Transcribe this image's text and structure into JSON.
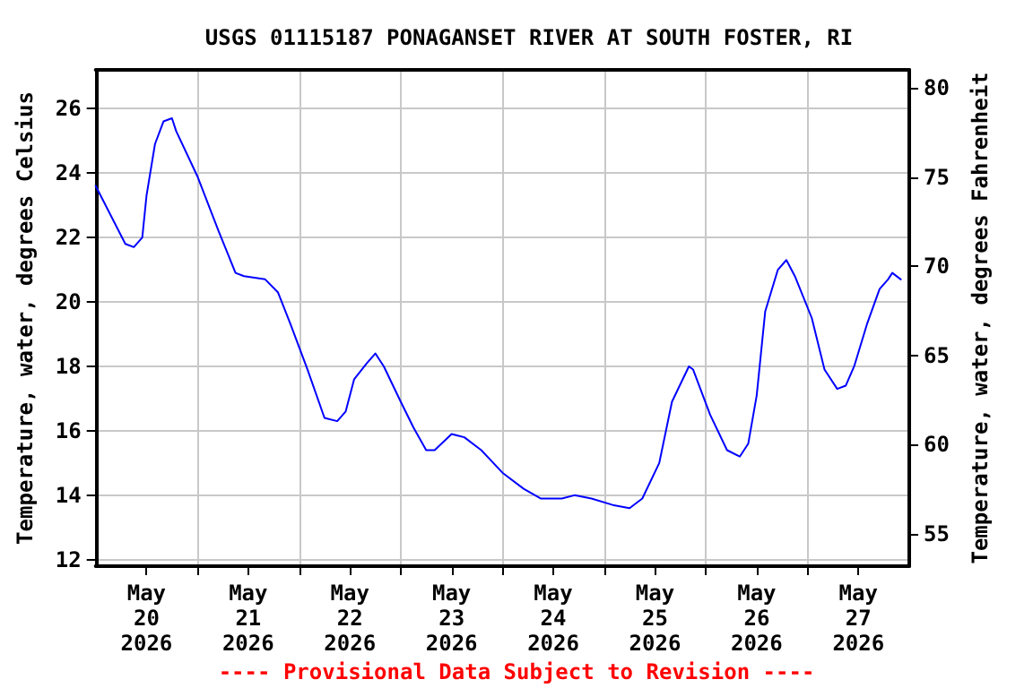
{
  "chart_data": {
    "type": "line",
    "title": "USGS 01115187 PONAGANSET RIVER AT SOUTH FOSTER, RI",
    "ylabel": "Temperature, water, degrees Celsius",
    "y2label": "Temperature, water, degrees Fahrenheit",
    "annotations": [
      "---- Provisional Data Subject to Revision ----"
    ],
    "series": [
      {
        "color": "#0000ff",
        "x": [
          "2026-05-20T00:00",
          "2026-05-20T07:00",
          "2026-05-20T09:00",
          "2026-05-20T11:00",
          "2026-05-20T12:00",
          "2026-05-20T14:00",
          "2026-05-20T16:00",
          "2026-05-20T18:00",
          "2026-05-20T19:00",
          "2026-05-21T00:00",
          "2026-05-21T05:00",
          "2026-05-21T09:00",
          "2026-05-21T11:00",
          "2026-05-21T16:00",
          "2026-05-21T19:00",
          "2026-05-21T22:00",
          "2026-05-22T02:00",
          "2026-05-22T06:00",
          "2026-05-22T09:00",
          "2026-05-22T11:00",
          "2026-05-22T13:00",
          "2026-05-22T16:00",
          "2026-05-22T18:00",
          "2026-05-22T20:00",
          "2026-05-23T00:00",
          "2026-05-23T03:00",
          "2026-05-23T06:00",
          "2026-05-23T08:00",
          "2026-05-23T12:00",
          "2026-05-23T15:00",
          "2026-05-23T19:00",
          "2026-05-24T00:00",
          "2026-05-24T05:00",
          "2026-05-24T09:00",
          "2026-05-24T14:00",
          "2026-05-24T17:00",
          "2026-05-24T21:00",
          "2026-05-25T02:00",
          "2026-05-25T06:00",
          "2026-05-25T09:00",
          "2026-05-25T13:00",
          "2026-05-25T16:00",
          "2026-05-25T20:00",
          "2026-05-25T21:00",
          "2026-05-26T01:00",
          "2026-05-26T05:00",
          "2026-05-26T08:00",
          "2026-05-26T10:00",
          "2026-05-26T12:00",
          "2026-05-26T14:00",
          "2026-05-26T17:00",
          "2026-05-26T19:00",
          "2026-05-26T21:00",
          "2026-05-27T01:00",
          "2026-05-27T04:00",
          "2026-05-27T07:00",
          "2026-05-27T09:00",
          "2026-05-27T11:00",
          "2026-05-27T14:00",
          "2026-05-27T17:00",
          "2026-05-27T19:00",
          "2026-05-27T20:00",
          "2026-05-27T22:00"
        ],
        "values": [
          23.6,
          21.8,
          21.7,
          22.0,
          23.3,
          24.9,
          25.6,
          25.7,
          25.3,
          23.9,
          22.2,
          20.9,
          20.8,
          20.7,
          20.3,
          19.3,
          17.9,
          16.4,
          16.3,
          16.6,
          17.6,
          18.1,
          18.4,
          18.0,
          16.9,
          16.1,
          15.4,
          15.4,
          15.9,
          15.8,
          15.4,
          14.7,
          14.2,
          13.9,
          13.9,
          14.0,
          13.9,
          13.7,
          13.6,
          13.9,
          15.0,
          16.9,
          18.0,
          17.9,
          16.5,
          15.4,
          15.2,
          15.6,
          17.1,
          19.7,
          21.0,
          21.3,
          20.8,
          19.5,
          17.9,
          17.3,
          17.4,
          18.0,
          19.3,
          20.4,
          20.7,
          20.9,
          20.7
        ]
      }
    ],
    "xlim": [
      "2026-05-20",
      "2026-05-28"
    ],
    "xticks": [
      {
        "value": "2026-05-20T12:00",
        "label": "May\n20\n2026"
      },
      {
        "value": "2026-05-21T12:00",
        "label": "May\n21\n2026"
      },
      {
        "value": "2026-05-22T12:00",
        "label": "May\n22\n2026"
      },
      {
        "value": "2026-05-23T12:00",
        "label": "May\n23\n2026"
      },
      {
        "value": "2026-05-24T12:00",
        "label": "May\n24\n2026"
      },
      {
        "value": "2026-05-25T12:00",
        "label": "May\n25\n2026"
      },
      {
        "value": "2026-05-26T12:00",
        "label": "May\n26\n2026"
      },
      {
        "value": "2026-05-27T12:00",
        "label": "May\n27\n2026"
      },
      {
        "value": "2026-05-21",
        "label": null
      },
      {
        "value": "2026-05-22",
        "label": null
      },
      {
        "value": "2026-05-23",
        "label": null
      },
      {
        "value": "2026-05-24",
        "label": null
      },
      {
        "value": "2026-05-25",
        "label": null
      },
      {
        "value": "2026-05-26",
        "label": null
      },
      {
        "value": "2026-05-27",
        "label": null
      }
    ],
    "ylim": [
      11.8,
      27.2
    ],
    "yticks": [
      12,
      14,
      16,
      18,
      20,
      22,
      24,
      26
    ],
    "y2lim": [
      53.2,
      81.0
    ],
    "y2ticks": [
      55,
      60,
      65,
      70,
      75,
      80
    ],
    "grid": true,
    "marker": "none",
    "line_style": "solid"
  }
}
